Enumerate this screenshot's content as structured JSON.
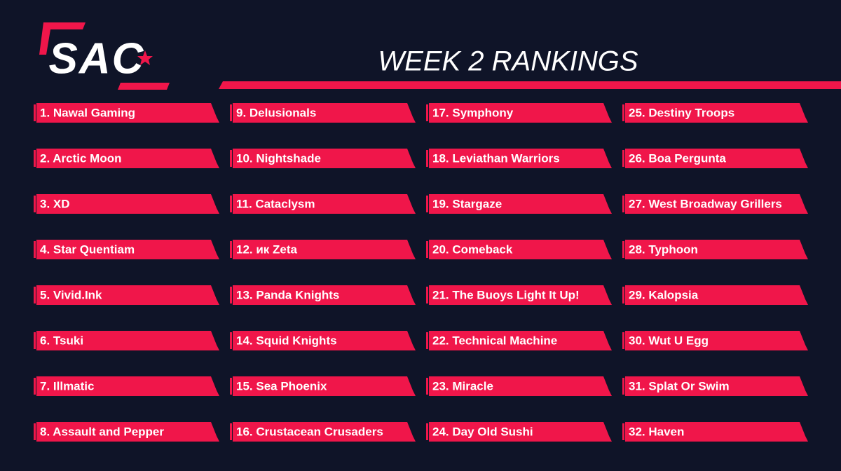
{
  "logo": "SAC",
  "header": {
    "title": "WEEK 2 RANKINGS"
  },
  "rankings": [
    "1. Nawal Gaming",
    "2. Arctic Moon",
    "3. XD",
    "4. Star Quentiam",
    "5. Vivid.Ink",
    "6. Tsuki",
    "7. Illmatic",
    "8. Assault and Pepper",
    "9. Delusionals",
    "10. Nightshade",
    "11. Cataclysm",
    "12. ик Zeta",
    "13. Panda Knights",
    "14. Squid Knights",
    "15. Sea Phoenix",
    "16. Crustacean Crusaders",
    "17. Symphony",
    "18. Leviathan Warriors",
    "19. Stargaze",
    "20. Comeback",
    "21. The Buoys Light It Up!",
    "22. Technical Machine",
    "23. Miracle",
    "24. Day Old Sushi",
    "25. Destiny Troops",
    "26. Boa Pergunta",
    "27. West Broadway Grillers",
    "28. Typhoon",
    "29. Kalopsia",
    "30. Wut U Egg",
    "31. Splat Or Swim",
    "32. Haven"
  ]
}
